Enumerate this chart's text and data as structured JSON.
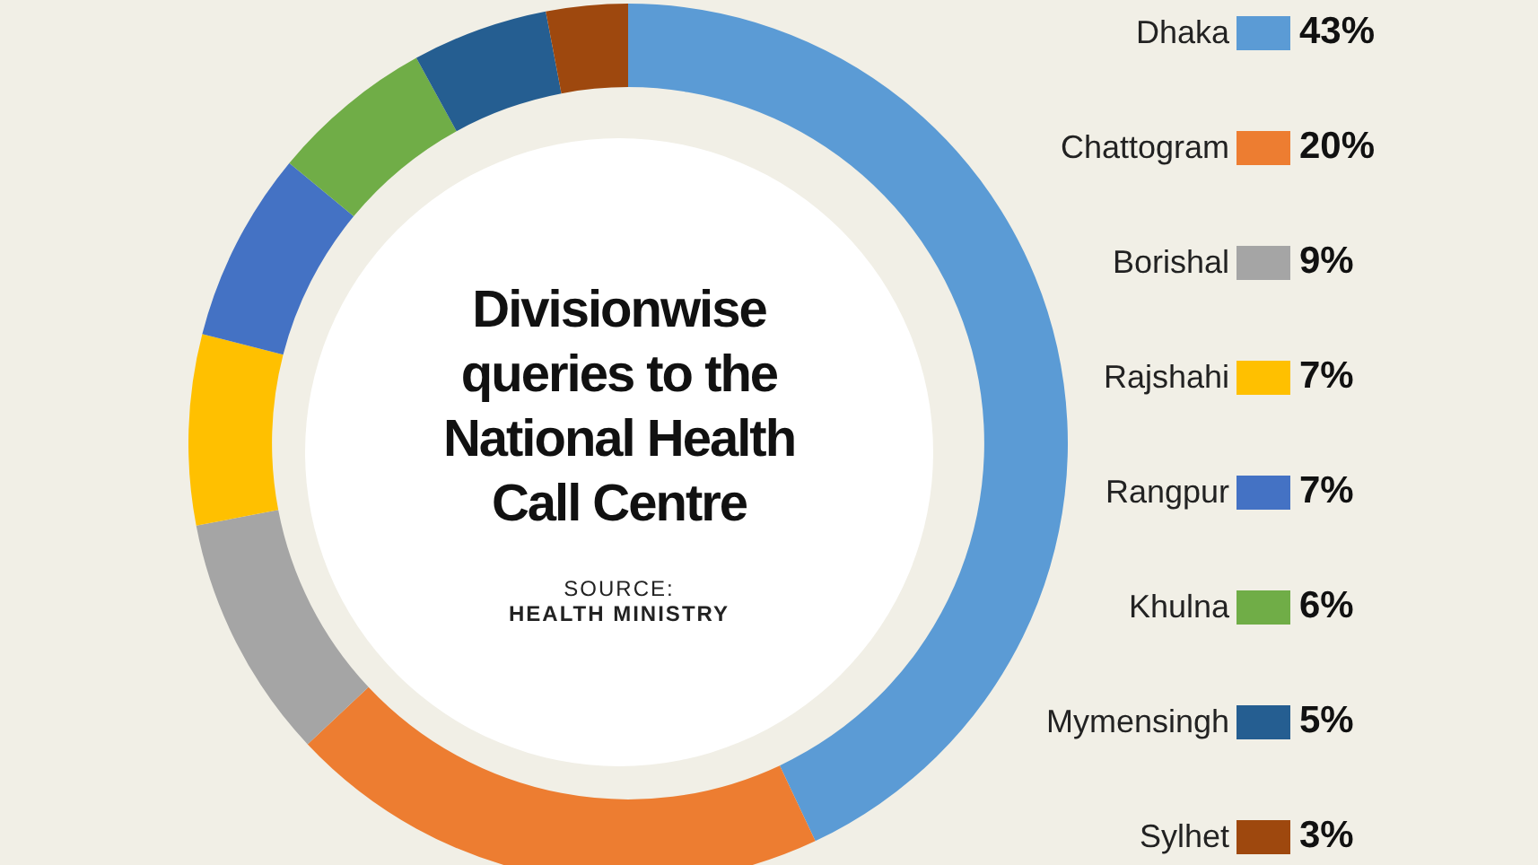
{
  "chart_data": {
    "type": "donut",
    "title": "Divisionwise queries to the National Health Call Centre",
    "annotations": [
      "SOURCE:",
      "HEALTH MINISTRY"
    ],
    "categories": [
      "Dhaka",
      "Chattogram",
      "Borishal",
      "Rajshahi",
      "Rangpur",
      "Khulna",
      "Mymensingh",
      "Sylhet"
    ],
    "values": [
      43,
      20,
      9,
      7,
      7,
      6,
      5,
      3
    ],
    "value_labels": [
      "43%",
      "20%",
      "9%",
      "7%",
      "7%",
      "6%",
      "5%",
      "3%"
    ],
    "colors": [
      "#5b9bd5",
      "#ed7d31",
      "#a5a5a5",
      "#ffc000",
      "#4472c4",
      "#70ad47",
      "#255e91",
      "#9e480e"
    ],
    "legend": "right",
    "data_labels": true
  }
}
